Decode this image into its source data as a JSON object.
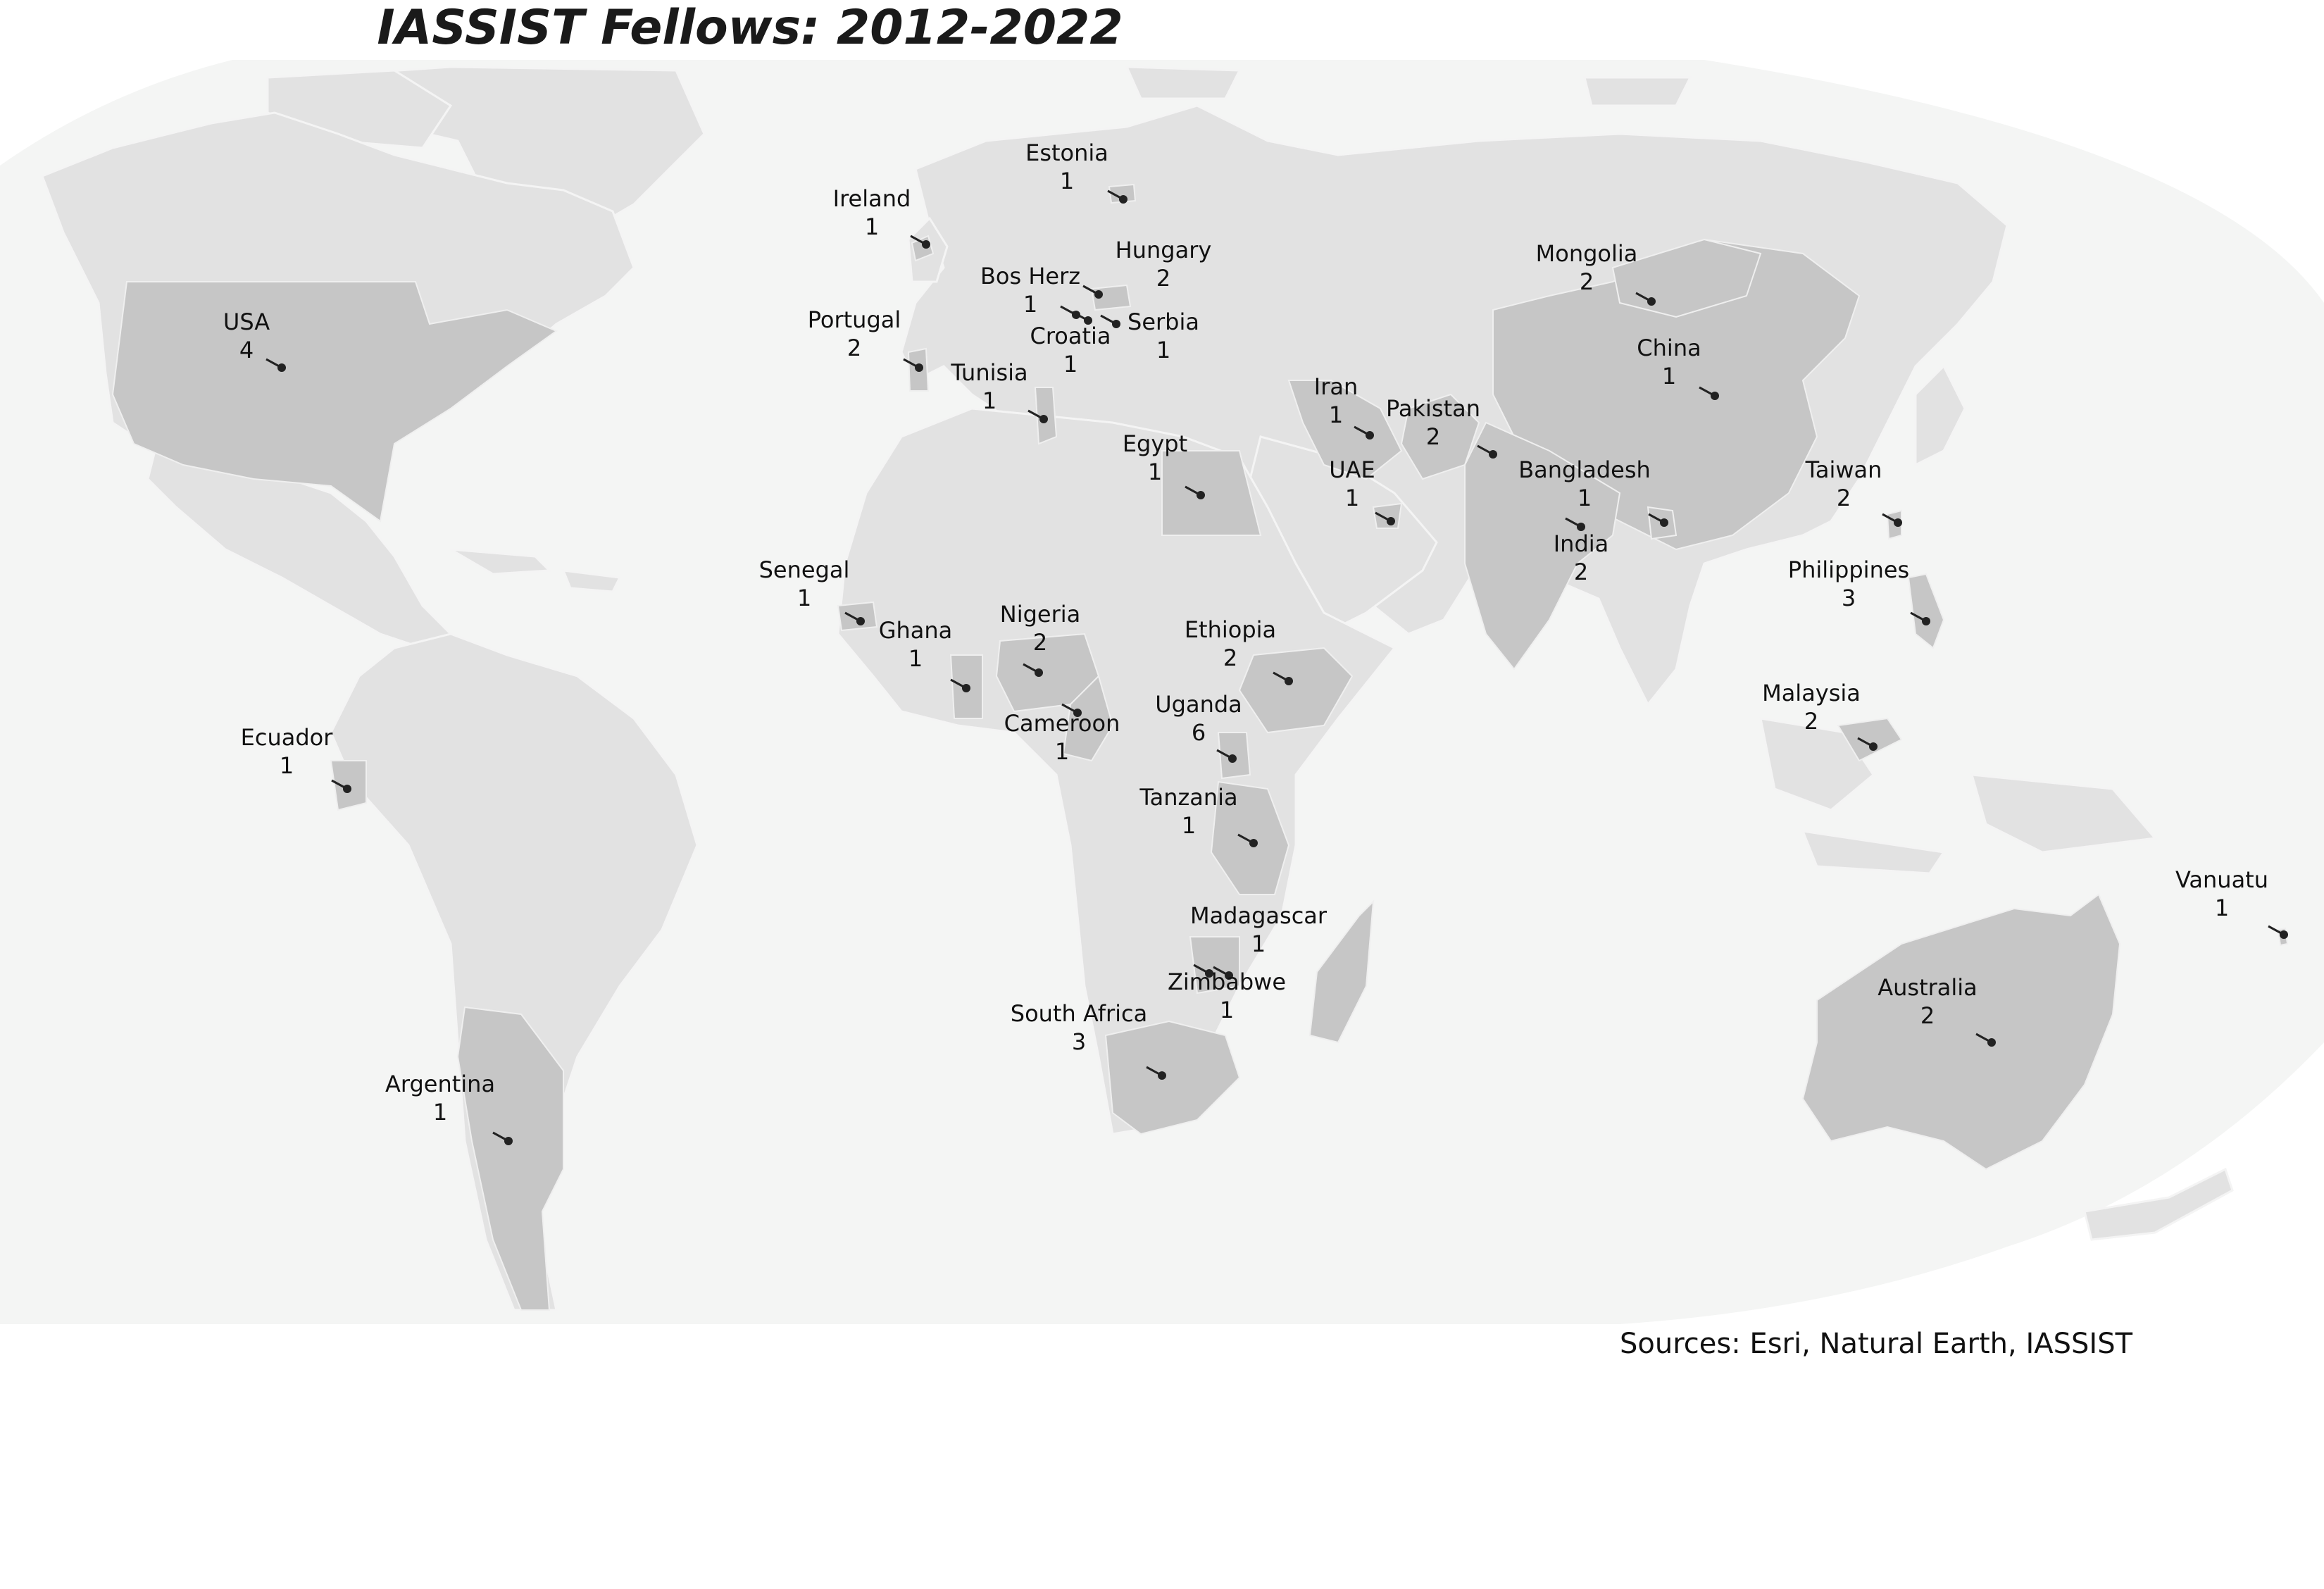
{
  "title": "IASSIST Fellows: 2012-2022",
  "source": "Sources: Esri, Natural Earth, IASSIST",
  "colors": {
    "ocean": "#f4f5f4",
    "land": "#e2e2e2",
    "highlight": "#c6c6c6",
    "marker": "#222222"
  },
  "countries": [
    {
      "name": "USA",
      "count": "4"
    },
    {
      "name": "Ireland",
      "count": "1"
    },
    {
      "name": "Estonia",
      "count": "1"
    },
    {
      "name": "Hungary",
      "count": "2"
    },
    {
      "name": "Bos Herz",
      "count": "1"
    },
    {
      "name": "Portugal",
      "count": "2"
    },
    {
      "name": "Croatia",
      "count": "1"
    },
    {
      "name": "Serbia",
      "count": "1"
    },
    {
      "name": "Tunisia",
      "count": "1"
    },
    {
      "name": "Mongolia",
      "count": "2"
    },
    {
      "name": "China",
      "count": "1"
    },
    {
      "name": "Iran",
      "count": "1"
    },
    {
      "name": "Pakistan",
      "count": "2"
    },
    {
      "name": "Egypt",
      "count": "1"
    },
    {
      "name": "UAE",
      "count": "1"
    },
    {
      "name": "Bangladesh",
      "count": "1"
    },
    {
      "name": "India",
      "count": "2"
    },
    {
      "name": "Taiwan",
      "count": "2"
    },
    {
      "name": "Philippines",
      "count": "3"
    },
    {
      "name": "Senegal",
      "count": "1"
    },
    {
      "name": "Nigeria",
      "count": "2"
    },
    {
      "name": "Ghana",
      "count": "1"
    },
    {
      "name": "Ethiopia",
      "count": "2"
    },
    {
      "name": "Uganda",
      "count": "6"
    },
    {
      "name": "Cameroon",
      "count": "1"
    },
    {
      "name": "Ecuador",
      "count": "1"
    },
    {
      "name": "Tanzania",
      "count": "1"
    },
    {
      "name": "Malaysia",
      "count": "2"
    },
    {
      "name": "Vanuatu",
      "count": "1"
    },
    {
      "name": "Madagascar",
      "count": "1"
    },
    {
      "name": "Zimbabwe",
      "count": "1"
    },
    {
      "name": "South Africa",
      "count": "3"
    },
    {
      "name": "Australia",
      "count": "2"
    },
    {
      "name": "Argentina",
      "count": "1"
    }
  ]
}
